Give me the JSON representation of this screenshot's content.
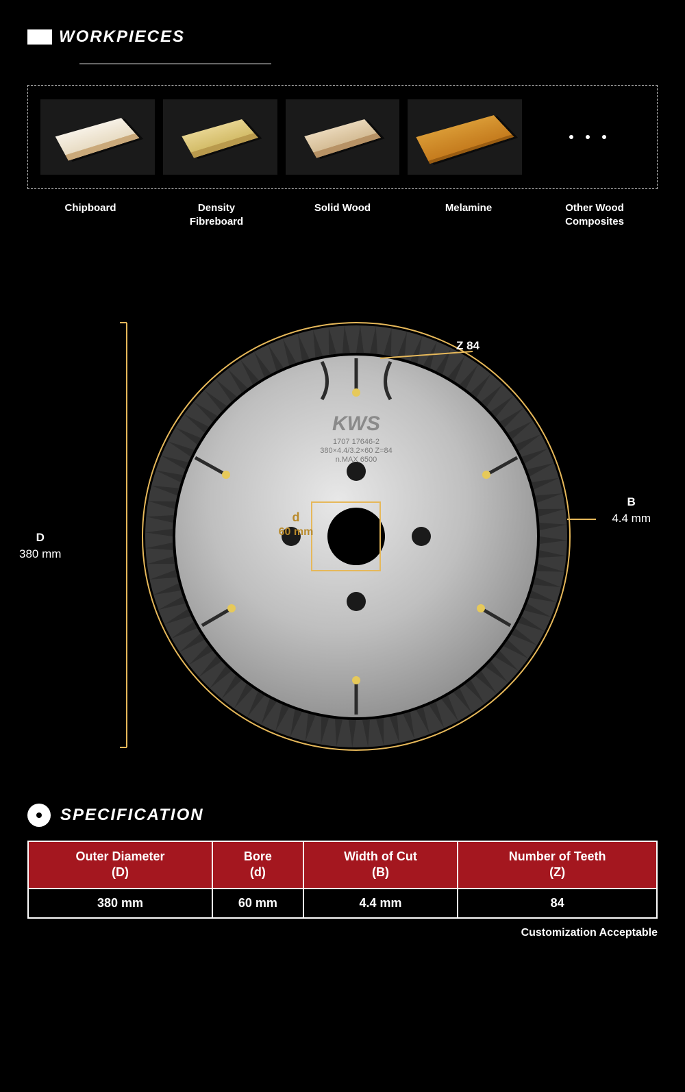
{
  "workpieces": {
    "title": "WORKPIECES",
    "items": [
      {
        "label": "Chipboard"
      },
      {
        "label": "Density\nFibreboard"
      },
      {
        "label": "Solid Wood"
      },
      {
        "label": "Melamine"
      },
      {
        "label": "Other Wood\nComposites"
      }
    ]
  },
  "diagram": {
    "brand": "KWS",
    "engrave1": "1707 17646-2",
    "engrave2": "380×4.4/3.2×60 Z=84",
    "engrave3": "n.MAX 6500",
    "accent": "#e6b85a",
    "disc_fill_outer": "#3a3a3a",
    "disc_fill_inner_light": "#d8d8d8",
    "disc_fill_inner_dark": "#9a9a9a",
    "tooth_count_approx": 84,
    "callouts": {
      "D": {
        "label": "D",
        "value": "380 mm"
      },
      "B": {
        "label": "B",
        "value": "4.4 mm"
      },
      "Z": {
        "label": "Z 84"
      },
      "d": {
        "label": "d",
        "value": "60 mm"
      }
    }
  },
  "specification": {
    "title": "SPECIFICATION",
    "columns": [
      {
        "h1": "Outer Diameter",
        "h2": "(D)"
      },
      {
        "h1": "Bore",
        "h2": "(d)"
      },
      {
        "h1": "Width of Cut",
        "h2": "(B)"
      },
      {
        "h1": "Number of Teeth",
        "h2": "(Z)"
      }
    ],
    "row": [
      "380 mm",
      "60 mm",
      "4.4 mm",
      "84"
    ],
    "note": "Customization Acceptable",
    "header_bg": "#a4171f"
  }
}
